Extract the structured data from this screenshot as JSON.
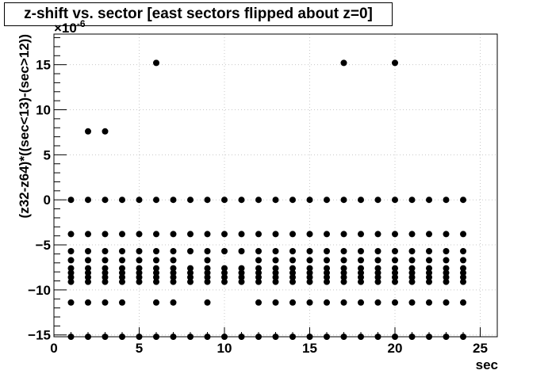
{
  "chart_data": {
    "type": "scatter",
    "title": "z-shift vs. sector [east sectors flipped about z=0]",
    "xlabel": "sec",
    "ylabel": "(z32-z64)*((sec<13)-(sec>12))",
    "y_exponent_label": "×10",
    "y_exponent_power": "-6",
    "xlim": [
      0,
      26
    ],
    "ylim": [
      -15.2,
      18.4
    ],
    "x_ticks": [
      0,
      5,
      10,
      15,
      20,
      25
    ],
    "y_ticks": [
      -15,
      -10,
      -5,
      0,
      5,
      10,
      15
    ],
    "grid": true,
    "marker_color": "#000000",
    "points": [
      {
        "x": 1,
        "y": 0
      },
      {
        "x": 1,
        "y": -3.8
      },
      {
        "x": 1,
        "y": -5.7
      },
      {
        "x": 1,
        "y": -6.7
      },
      {
        "x": 1,
        "y": -7.6
      },
      {
        "x": 1,
        "y": -8.1
      },
      {
        "x": 1,
        "y": -8.6
      },
      {
        "x": 1,
        "y": -9.1
      },
      {
        "x": 1,
        "y": -11.4
      },
      {
        "x": 1,
        "y": -15.2
      },
      {
        "x": 2,
        "y": 7.6
      },
      {
        "x": 2,
        "y": 0
      },
      {
        "x": 2,
        "y": -3.8
      },
      {
        "x": 2,
        "y": -5.7
      },
      {
        "x": 2,
        "y": -6.7
      },
      {
        "x": 2,
        "y": -7.6
      },
      {
        "x": 2,
        "y": -8.1
      },
      {
        "x": 2,
        "y": -8.6
      },
      {
        "x": 2,
        "y": -9.1
      },
      {
        "x": 2,
        "y": -11.4
      },
      {
        "x": 2,
        "y": -15.2
      },
      {
        "x": 3,
        "y": 7.6
      },
      {
        "x": 3,
        "y": 0
      },
      {
        "x": 3,
        "y": -3.8
      },
      {
        "x": 3,
        "y": -5.7
      },
      {
        "x": 3,
        "y": -6.7
      },
      {
        "x": 3,
        "y": -7.6
      },
      {
        "x": 3,
        "y": -8.1
      },
      {
        "x": 3,
        "y": -8.6
      },
      {
        "x": 3,
        "y": -9.1
      },
      {
        "x": 3,
        "y": -11.4
      },
      {
        "x": 3,
        "y": -15.2
      },
      {
        "x": 4,
        "y": 0
      },
      {
        "x": 4,
        "y": -3.8
      },
      {
        "x": 4,
        "y": -5.7
      },
      {
        "x": 4,
        "y": -6.7
      },
      {
        "x": 4,
        "y": -7.6
      },
      {
        "x": 4,
        "y": -8.1
      },
      {
        "x": 4,
        "y": -8.6
      },
      {
        "x": 4,
        "y": -9.1
      },
      {
        "x": 4,
        "y": -11.4
      },
      {
        "x": 4,
        "y": -15.2
      },
      {
        "x": 5,
        "y": 0
      },
      {
        "x": 5,
        "y": -3.8
      },
      {
        "x": 5,
        "y": -5.7
      },
      {
        "x": 5,
        "y": -6.7
      },
      {
        "x": 5,
        "y": -7.6
      },
      {
        "x": 5,
        "y": -8.1
      },
      {
        "x": 5,
        "y": -8.6
      },
      {
        "x": 5,
        "y": -9.1
      },
      {
        "x": 5,
        "y": -15.2
      },
      {
        "x": 6,
        "y": 15.2
      },
      {
        "x": 6,
        "y": 0
      },
      {
        "x": 6,
        "y": -3.8
      },
      {
        "x": 6,
        "y": -5.7
      },
      {
        "x": 6,
        "y": -6.7
      },
      {
        "x": 6,
        "y": -7.6
      },
      {
        "x": 6,
        "y": -8.1
      },
      {
        "x": 6,
        "y": -8.6
      },
      {
        "x": 6,
        "y": -9.1
      },
      {
        "x": 6,
        "y": -11.4
      },
      {
        "x": 6,
        "y": -15.2
      },
      {
        "x": 7,
        "y": 0
      },
      {
        "x": 7,
        "y": -3.8
      },
      {
        "x": 7,
        "y": -5.7
      },
      {
        "x": 7,
        "y": -6.7
      },
      {
        "x": 7,
        "y": -7.6
      },
      {
        "x": 7,
        "y": -8.1
      },
      {
        "x": 7,
        "y": -8.6
      },
      {
        "x": 7,
        "y": -9.1
      },
      {
        "x": 7,
        "y": -11.4
      },
      {
        "x": 7,
        "y": -15.2
      },
      {
        "x": 8,
        "y": 0
      },
      {
        "x": 8,
        "y": -3.8
      },
      {
        "x": 8,
        "y": -5.7
      },
      {
        "x": 8,
        "y": -7.6
      },
      {
        "x": 8,
        "y": -8.1
      },
      {
        "x": 8,
        "y": -8.6
      },
      {
        "x": 8,
        "y": -9.1
      },
      {
        "x": 8,
        "y": -15.2
      },
      {
        "x": 9,
        "y": 0
      },
      {
        "x": 9,
        "y": -3.8
      },
      {
        "x": 9,
        "y": -5.7
      },
      {
        "x": 9,
        "y": -6.7
      },
      {
        "x": 9,
        "y": -7.6
      },
      {
        "x": 9,
        "y": -8.1
      },
      {
        "x": 9,
        "y": -8.6
      },
      {
        "x": 9,
        "y": -9.1
      },
      {
        "x": 9,
        "y": -11.4
      },
      {
        "x": 9,
        "y": -15.2
      },
      {
        "x": 10,
        "y": 0
      },
      {
        "x": 10,
        "y": -3.8
      },
      {
        "x": 10,
        "y": -5.7
      },
      {
        "x": 10,
        "y": -7.6
      },
      {
        "x": 10,
        "y": -8.1
      },
      {
        "x": 10,
        "y": -8.6
      },
      {
        "x": 10,
        "y": -9.1
      },
      {
        "x": 10,
        "y": -15.2
      },
      {
        "x": 11,
        "y": 0
      },
      {
        "x": 11,
        "y": -3.8
      },
      {
        "x": 11,
        "y": -5.7
      },
      {
        "x": 11,
        "y": -7.6
      },
      {
        "x": 11,
        "y": -8.1
      },
      {
        "x": 11,
        "y": -8.6
      },
      {
        "x": 11,
        "y": -9.1
      },
      {
        "x": 11,
        "y": -15.2
      },
      {
        "x": 12,
        "y": 0
      },
      {
        "x": 12,
        "y": -3.8
      },
      {
        "x": 12,
        "y": -5.7
      },
      {
        "x": 12,
        "y": -6.7
      },
      {
        "x": 12,
        "y": -7.6
      },
      {
        "x": 12,
        "y": -8.1
      },
      {
        "x": 12,
        "y": -8.6
      },
      {
        "x": 12,
        "y": -9.1
      },
      {
        "x": 12,
        "y": -11.4
      },
      {
        "x": 12,
        "y": -15.2
      },
      {
        "x": 13,
        "y": 0
      },
      {
        "x": 13,
        "y": -3.8
      },
      {
        "x": 13,
        "y": -5.7
      },
      {
        "x": 13,
        "y": -6.7
      },
      {
        "x": 13,
        "y": -7.6
      },
      {
        "x": 13,
        "y": -8.1
      },
      {
        "x": 13,
        "y": -8.6
      },
      {
        "x": 13,
        "y": -9.1
      },
      {
        "x": 13,
        "y": -11.4
      },
      {
        "x": 13,
        "y": -15.2
      },
      {
        "x": 14,
        "y": 0
      },
      {
        "x": 14,
        "y": -3.8
      },
      {
        "x": 14,
        "y": -5.7
      },
      {
        "x": 14,
        "y": -6.7
      },
      {
        "x": 14,
        "y": -7.6
      },
      {
        "x": 14,
        "y": -8.1
      },
      {
        "x": 14,
        "y": -8.6
      },
      {
        "x": 14,
        "y": -9.1
      },
      {
        "x": 14,
        "y": -11.4
      },
      {
        "x": 14,
        "y": -15.2
      },
      {
        "x": 15,
        "y": 0
      },
      {
        "x": 15,
        "y": -3.8
      },
      {
        "x": 15,
        "y": -5.7
      },
      {
        "x": 15,
        "y": -6.7
      },
      {
        "x": 15,
        "y": -7.6
      },
      {
        "x": 15,
        "y": -8.1
      },
      {
        "x": 15,
        "y": -8.6
      },
      {
        "x": 15,
        "y": -9.1
      },
      {
        "x": 15,
        "y": -11.4
      },
      {
        "x": 15,
        "y": -15.2
      },
      {
        "x": 16,
        "y": 0
      },
      {
        "x": 16,
        "y": -3.8
      },
      {
        "x": 16,
        "y": -5.7
      },
      {
        "x": 16,
        "y": -6.7
      },
      {
        "x": 16,
        "y": -7.6
      },
      {
        "x": 16,
        "y": -8.1
      },
      {
        "x": 16,
        "y": -8.6
      },
      {
        "x": 16,
        "y": -9.1
      },
      {
        "x": 16,
        "y": -11.4
      },
      {
        "x": 16,
        "y": -15.2
      },
      {
        "x": 17,
        "y": 15.2
      },
      {
        "x": 17,
        "y": 0
      },
      {
        "x": 17,
        "y": -3.8
      },
      {
        "x": 17,
        "y": -5.7
      },
      {
        "x": 17,
        "y": -6.7
      },
      {
        "x": 17,
        "y": -7.6
      },
      {
        "x": 17,
        "y": -8.1
      },
      {
        "x": 17,
        "y": -8.6
      },
      {
        "x": 17,
        "y": -9.1
      },
      {
        "x": 17,
        "y": -11.4
      },
      {
        "x": 17,
        "y": -15.2
      },
      {
        "x": 18,
        "y": 0
      },
      {
        "x": 18,
        "y": -3.8
      },
      {
        "x": 18,
        "y": -5.7
      },
      {
        "x": 18,
        "y": -6.7
      },
      {
        "x": 18,
        "y": -7.6
      },
      {
        "x": 18,
        "y": -8.1
      },
      {
        "x": 18,
        "y": -8.6
      },
      {
        "x": 18,
        "y": -9.1
      },
      {
        "x": 18,
        "y": -11.4
      },
      {
        "x": 18,
        "y": -15.2
      },
      {
        "x": 19,
        "y": 0
      },
      {
        "x": 19,
        "y": -3.8
      },
      {
        "x": 19,
        "y": -5.7
      },
      {
        "x": 19,
        "y": -6.7
      },
      {
        "x": 19,
        "y": -7.6
      },
      {
        "x": 19,
        "y": -8.1
      },
      {
        "x": 19,
        "y": -8.6
      },
      {
        "x": 19,
        "y": -9.1
      },
      {
        "x": 19,
        "y": -11.4
      },
      {
        "x": 19,
        "y": -15.2
      },
      {
        "x": 20,
        "y": 15.2
      },
      {
        "x": 20,
        "y": 0
      },
      {
        "x": 20,
        "y": -3.8
      },
      {
        "x": 20,
        "y": -5.7
      },
      {
        "x": 20,
        "y": -6.7
      },
      {
        "x": 20,
        "y": -7.6
      },
      {
        "x": 20,
        "y": -8.1
      },
      {
        "x": 20,
        "y": -8.6
      },
      {
        "x": 20,
        "y": -9.1
      },
      {
        "x": 20,
        "y": -11.4
      },
      {
        "x": 20,
        "y": -15.2
      },
      {
        "x": 21,
        "y": 0
      },
      {
        "x": 21,
        "y": -3.8
      },
      {
        "x": 21,
        "y": -5.7
      },
      {
        "x": 21,
        "y": -6.7
      },
      {
        "x": 21,
        "y": -7.6
      },
      {
        "x": 21,
        "y": -8.1
      },
      {
        "x": 21,
        "y": -8.6
      },
      {
        "x": 21,
        "y": -9.1
      },
      {
        "x": 21,
        "y": -11.4
      },
      {
        "x": 21,
        "y": -15.2
      },
      {
        "x": 22,
        "y": 0
      },
      {
        "x": 22,
        "y": -3.8
      },
      {
        "x": 22,
        "y": -5.7
      },
      {
        "x": 22,
        "y": -6.7
      },
      {
        "x": 22,
        "y": -7.6
      },
      {
        "x": 22,
        "y": -8.1
      },
      {
        "x": 22,
        "y": -8.6
      },
      {
        "x": 22,
        "y": -9.1
      },
      {
        "x": 22,
        "y": -11.4
      },
      {
        "x": 22,
        "y": -15.2
      },
      {
        "x": 23,
        "y": 0
      },
      {
        "x": 23,
        "y": -3.8
      },
      {
        "x": 23,
        "y": -5.7
      },
      {
        "x": 23,
        "y": -6.7
      },
      {
        "x": 23,
        "y": -7.6
      },
      {
        "x": 23,
        "y": -8.1
      },
      {
        "x": 23,
        "y": -8.6
      },
      {
        "x": 23,
        "y": -9.1
      },
      {
        "x": 23,
        "y": -11.4
      },
      {
        "x": 23,
        "y": -15.2
      },
      {
        "x": 24,
        "y": 0
      },
      {
        "x": 24,
        "y": -3.8
      },
      {
        "x": 24,
        "y": -5.7
      },
      {
        "x": 24,
        "y": -6.7
      },
      {
        "x": 24,
        "y": -7.6
      },
      {
        "x": 24,
        "y": -8.1
      },
      {
        "x": 24,
        "y": -8.6
      },
      {
        "x": 24,
        "y": -9.1
      },
      {
        "x": 24,
        "y": -11.4
      },
      {
        "x": 24,
        "y": -15.2
      }
    ]
  }
}
